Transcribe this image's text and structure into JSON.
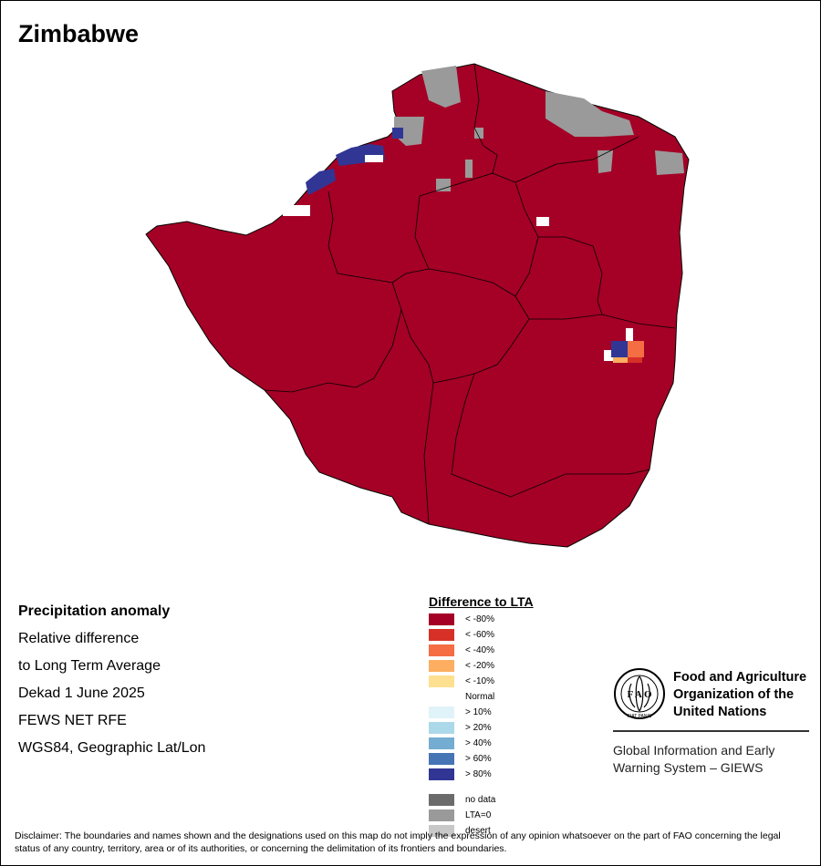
{
  "map": {
    "title": "Zimbabwe"
  },
  "info": {
    "lines": [
      "Precipitation anomaly",
      "Relative difference",
      "to Long Term Average",
      "Dekad 1 June 2025",
      "FEWS NET RFE",
      "WGS84, Geographic Lat/Lon"
    ]
  },
  "legend": {
    "title": "Difference to LTA",
    "items": [
      {
        "label": "< -80%",
        "color": "#a50026"
      },
      {
        "label": "< -60%",
        "color": "#d73027"
      },
      {
        "label": "< -40%",
        "color": "#f46d43"
      },
      {
        "label": "< -20%",
        "color": "#fdae61"
      },
      {
        "label": "< -10%",
        "color": "#fee090"
      },
      {
        "label": "Normal",
        "color": "#ffffff"
      },
      {
        "label": "> 10%",
        "color": "#e0f3f8"
      },
      {
        "label": "> 20%",
        "color": "#abd9e9"
      },
      {
        "label": "> 40%",
        "color": "#74add1"
      },
      {
        "label": "> 60%",
        "color": "#4575b4"
      },
      {
        "label": "> 80%",
        "color": "#313695"
      }
    ],
    "extra": [
      {
        "label": "no data",
        "color": "#6b6b6b"
      },
      {
        "label": "LTA=0",
        "color": "#9a9a9a"
      },
      {
        "label": "desert",
        "color": "#c8c8c8"
      }
    ]
  },
  "fao": {
    "name_lines": [
      "Food and Agriculture",
      "Organization of the",
      "United Nations"
    ],
    "logo_letters": "F A O",
    "logo_motto": "FIAT PANIS",
    "giews_lines": [
      "Global Information and Early",
      "Warning System – GIEWS"
    ]
  },
  "disclaimer": "Disclaimer: The boundaries and names shown and the designations used on this map do not imply the expression of any opinion whatsoever on the part of FAO concerning the legal status of any country, territory, area or of its authorities, or concerning the delimitation of its frontiers and boundaries."
}
